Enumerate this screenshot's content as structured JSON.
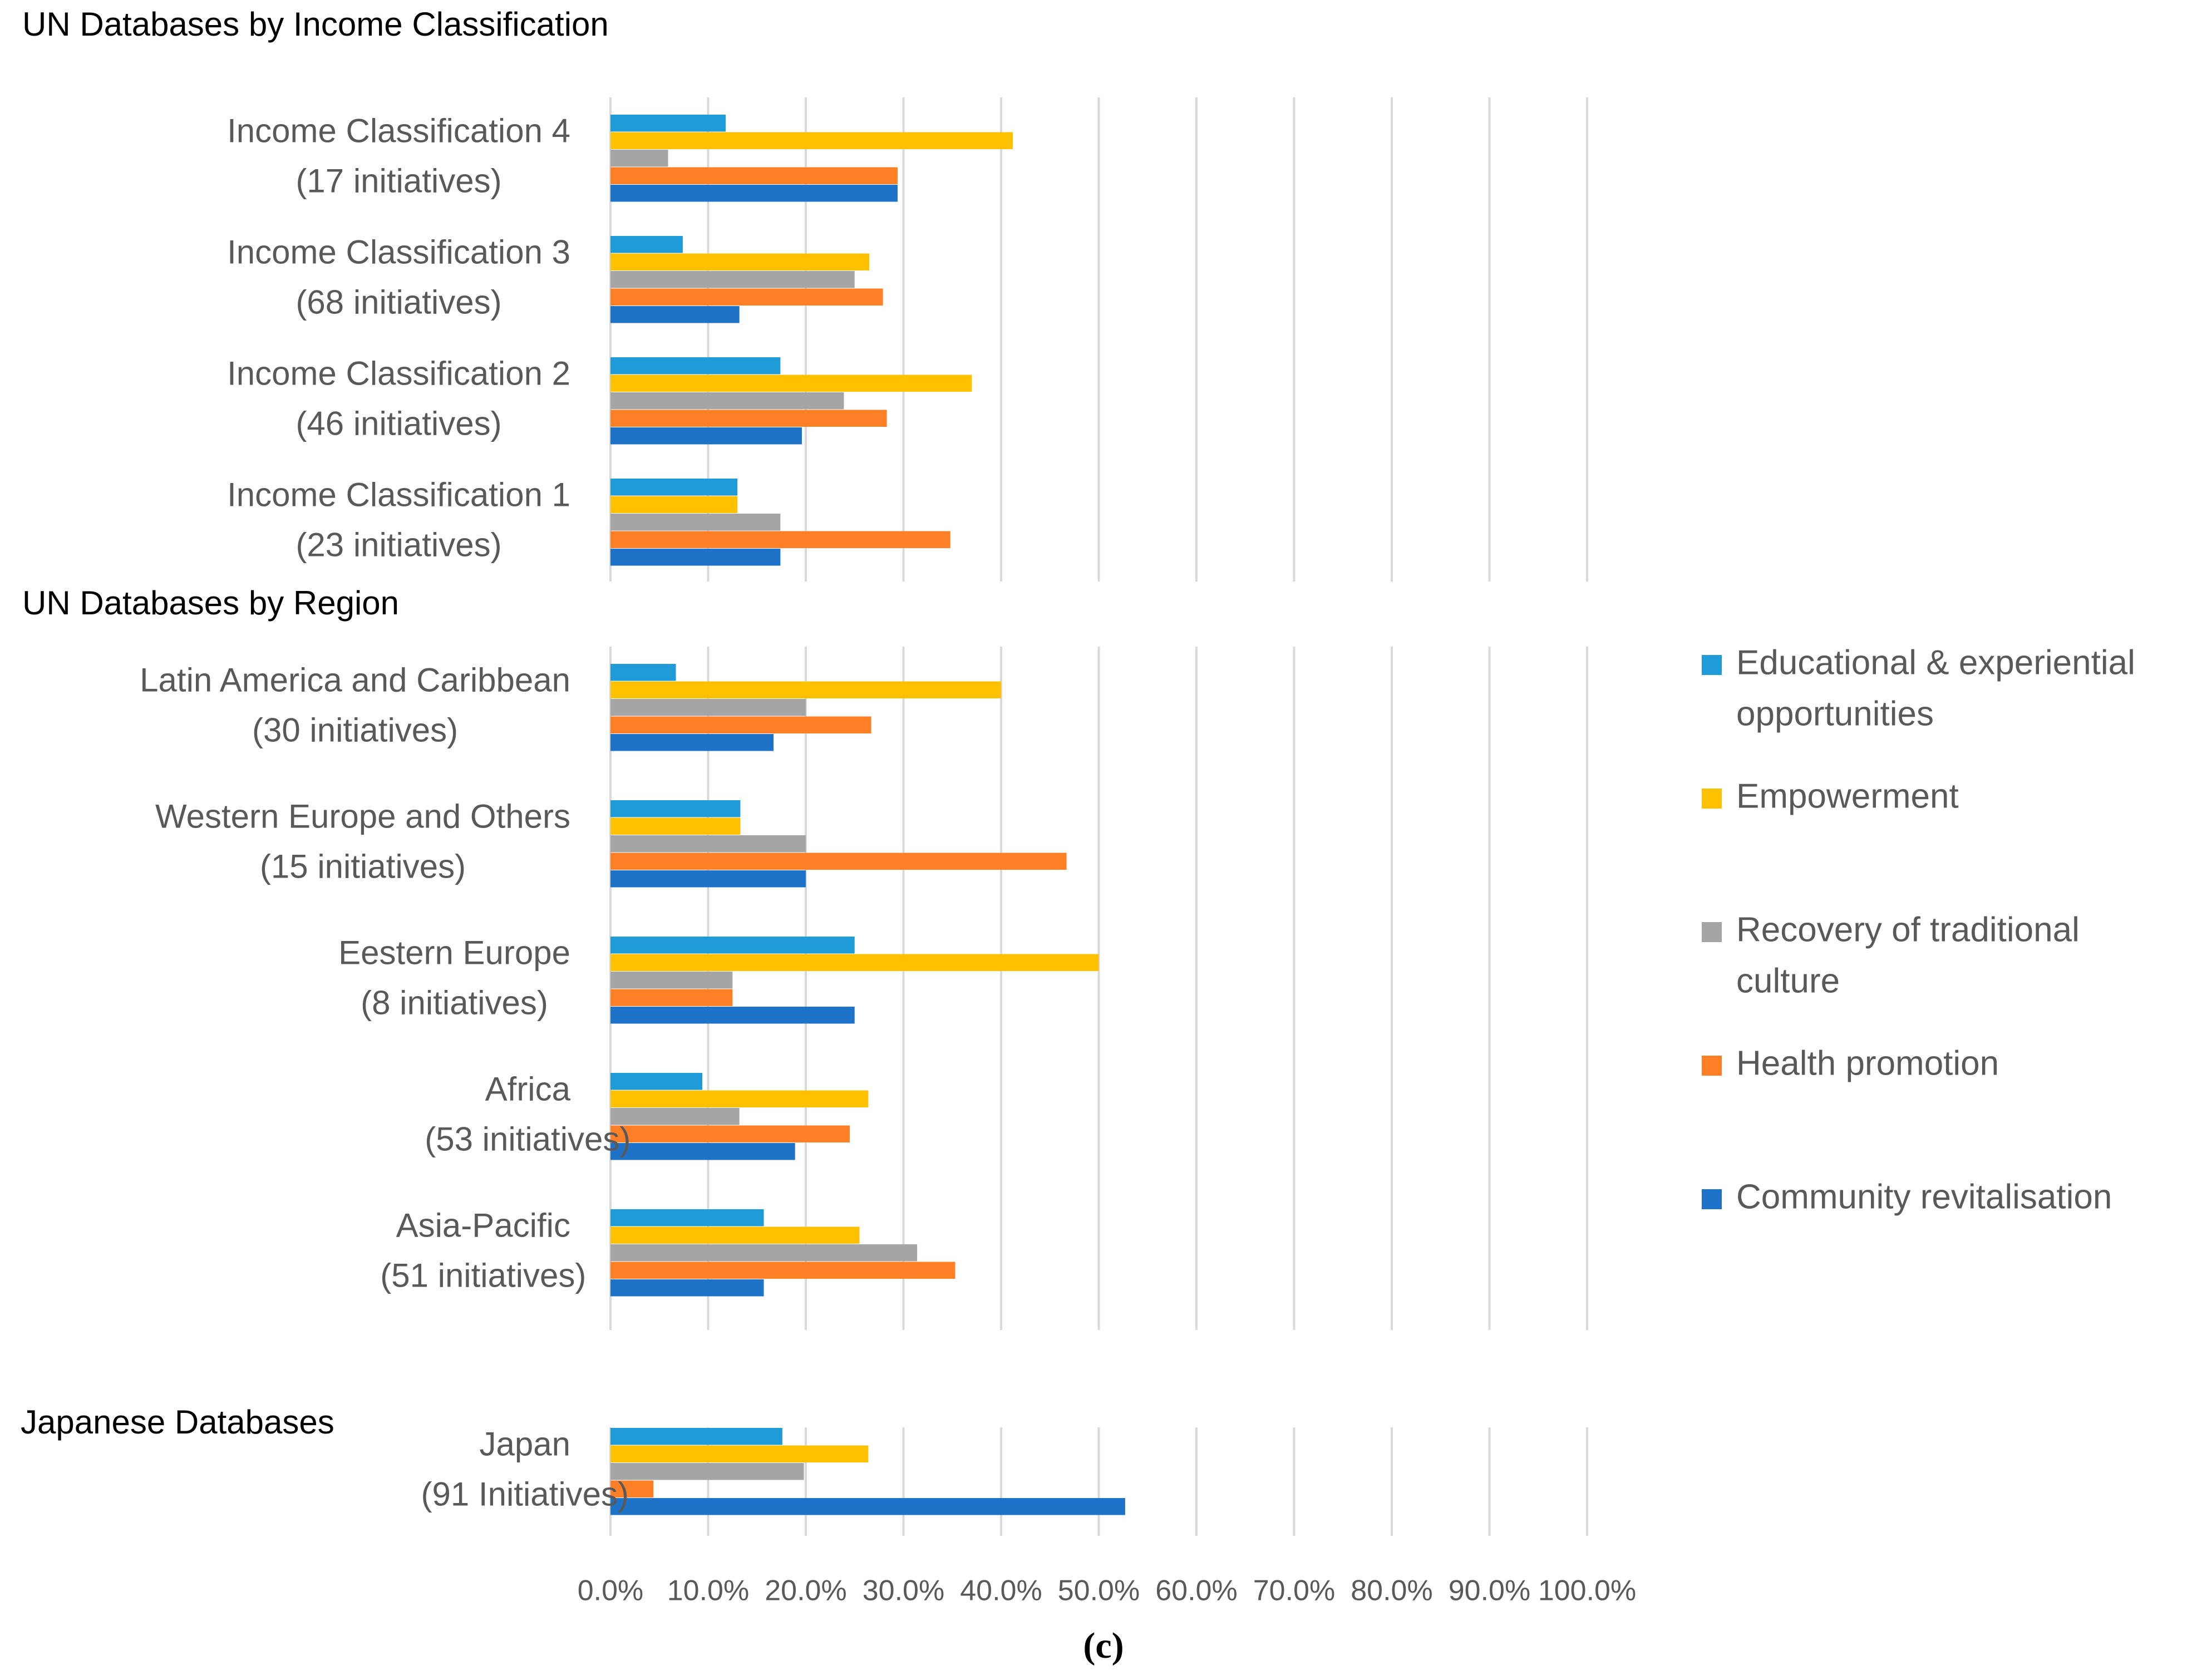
{
  "chart_data": {
    "type": "bar",
    "orientation": "horizontal",
    "xlim": [
      0,
      100
    ],
    "x_ticks": [
      "0.0%",
      "10.0%",
      "20.0%",
      "30.0%",
      "40.0%",
      "50.0%",
      "60.0%",
      "70.0%",
      "80.0%",
      "90.0%",
      "100.0%"
    ],
    "caption": "(c)",
    "series": [
      {
        "name": "Educational & experiential opportunities",
        "legend_lines": [
          "Educational & experiential",
          "opportunities"
        ],
        "color": "#1F9BD7"
      },
      {
        "name": "Empowerment",
        "legend_lines": [
          "Empowerment"
        ],
        "color": "#FFC000"
      },
      {
        "name": "Recovery of traditional culture",
        "legend_lines": [
          "Recovery of traditional",
          "culture"
        ],
        "color": "#A5A5A5"
      },
      {
        "name": "Health promotion",
        "legend_lines": [
          "Health promotion"
        ],
        "color": "#FF7F27"
      },
      {
        "name": "Community revitalisation",
        "legend_lines": [
          "Community revitalisation"
        ],
        "color": "#1E72C8"
      }
    ],
    "panels": [
      {
        "title": "UN Databases by Income Classification",
        "categories": [
          {
            "label": "Income Classification 4",
            "sublabel": "(17 initiatives)",
            "values": [
              11.8,
              41.2,
              5.9,
              29.4,
              29.4
            ]
          },
          {
            "label": "Income Classification 3",
            "sublabel": "(68 initiatives)",
            "values": [
              7.4,
              26.5,
              25.0,
              27.9,
              13.2
            ]
          },
          {
            "label": "Income Classification 2",
            "sublabel": "(46 initiatives)",
            "values": [
              17.4,
              37.0,
              23.9,
              28.3,
              19.6
            ]
          },
          {
            "label": "Income Classification 1",
            "sublabel": "(23 initiatives)",
            "values": [
              13.0,
              13.0,
              17.4,
              34.8,
              17.4
            ]
          }
        ]
      },
      {
        "title": "UN Databases by Region",
        "categories": [
          {
            "label": "Latin America and Caribbean",
            "sublabel": "(30 initiatives)",
            "values": [
              6.7,
              40.0,
              20.0,
              26.7,
              16.7
            ]
          },
          {
            "label": "Western Europe and Others",
            "sublabel": "(15 initiatives)",
            "values": [
              13.3,
              13.3,
              20.0,
              46.7,
              20.0
            ]
          },
          {
            "label": "Eestern Europe",
            "sublabel": "(8 initiatives)",
            "values": [
              25.0,
              50.0,
              12.5,
              12.5,
              25.0
            ]
          },
          {
            "label": "Africa",
            "sublabel": "(53 initiatives)",
            "values": [
              9.4,
              26.4,
              13.2,
              24.5,
              18.9
            ]
          },
          {
            "label": "Asia-Pacific",
            "sublabel": "(51 initiatives)",
            "values": [
              15.7,
              25.5,
              31.4,
              35.3,
              15.7
            ]
          }
        ]
      },
      {
        "title": "Japanese Databases",
        "categories": [
          {
            "label": "Japan",
            "sublabel": "(91 Initiatives)",
            "values": [
              17.6,
              26.4,
              19.8,
              4.4,
              52.7
            ]
          }
        ]
      }
    ]
  }
}
